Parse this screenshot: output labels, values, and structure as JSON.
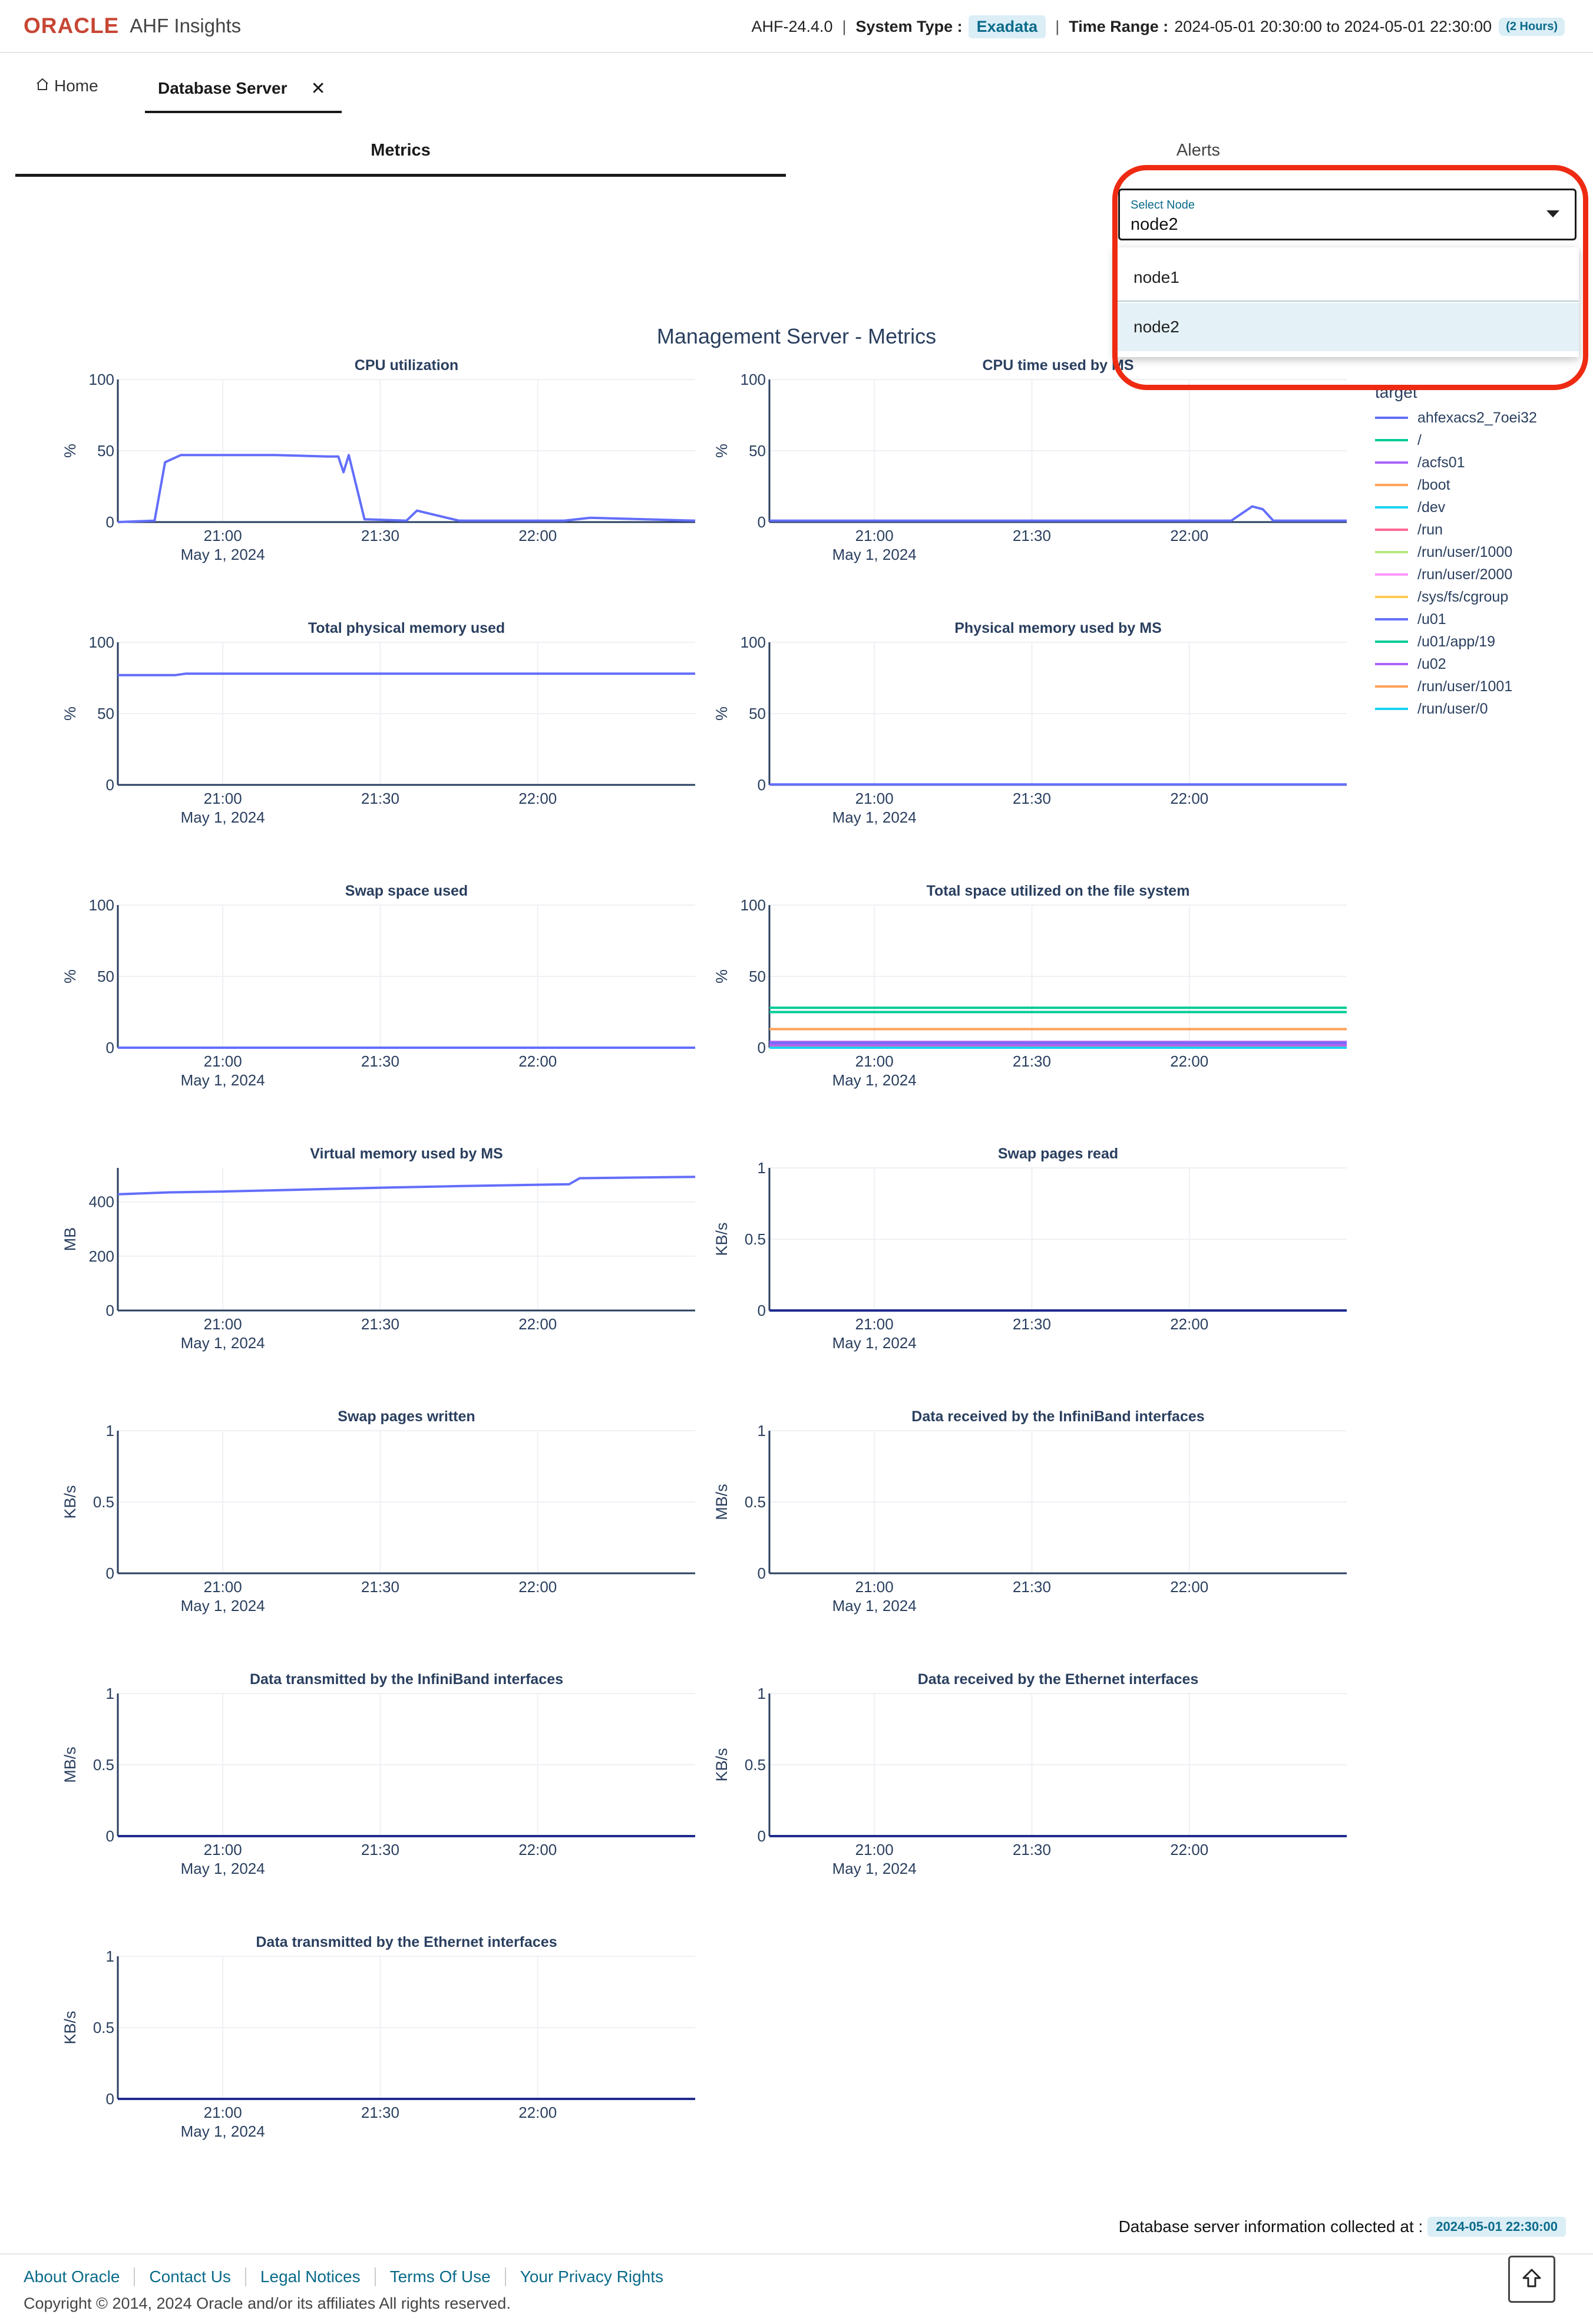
{
  "header": {
    "brand": "ORACLE",
    "app_name": "AHF Insights",
    "version": "AHF-24.4.0",
    "system_type_label": "System Type :",
    "system_type": "Exadata",
    "time_range_label": "Time Range :",
    "time_range": "2024-05-01 20:30:00 to 2024-05-01 22:30:00",
    "time_range_badge": "(2 Hours)"
  },
  "tabs": {
    "home_label": "Home",
    "db_server_label": "Database Server"
  },
  "subtabs": {
    "metrics": "Metrics",
    "alerts": "Alerts"
  },
  "node_select": {
    "label": "Select Node",
    "value": "node2",
    "options": [
      "node1",
      "node2"
    ]
  },
  "main_title": "Management Server - Metrics",
  "time_axis": {
    "ticks": [
      "21:00",
      "21:30",
      "22:00"
    ],
    "date_label": "May 1, 2024"
  },
  "legend": {
    "title": "target",
    "items": [
      {
        "name": "ahfexacs2_7oei32",
        "color": "#636efa"
      },
      {
        "name": "/",
        "color": "#00cc96"
      },
      {
        "name": "/acfs01",
        "color": "#ab63fa"
      },
      {
        "name": "/boot",
        "color": "#ffa15a"
      },
      {
        "name": "/dev",
        "color": "#19d3f3"
      },
      {
        "name": "/run",
        "color": "#ff6692"
      },
      {
        "name": "/run/user/1000",
        "color": "#b6e880"
      },
      {
        "name": "/run/user/2000",
        "color": "#ff97ff"
      },
      {
        "name": "/sys/fs/cgroup",
        "color": "#fecb52"
      },
      {
        "name": "/u01",
        "color": "#636efa"
      },
      {
        "name": "/u01/app/19",
        "color": "#00cc96"
      },
      {
        "name": "/u02",
        "color": "#ab63fa"
      },
      {
        "name": "/run/user/1001",
        "color": "#ffa15a"
      },
      {
        "name": "/run/user/0",
        "color": "#19d3f3"
      }
    ]
  },
  "chart_data": [
    {
      "type": "line",
      "title": "CPU utilization",
      "ylabel": "%",
      "ylim": [
        0,
        100
      ],
      "yticks": [
        "0",
        "50",
        "100"
      ],
      "x": [
        "20:40",
        "20:47",
        "20:49",
        "20:52",
        "21:00",
        "21:10",
        "21:20",
        "21:22",
        "21:23",
        "21:24",
        "21:27",
        "21:35",
        "21:37",
        "21:45",
        "21:55",
        "22:05",
        "22:10",
        "22:30"
      ],
      "series": [
        {
          "name": "ahfexacs2_7oei32",
          "color": "#636efa",
          "values": [
            0,
            1,
            42,
            47,
            47,
            47,
            46,
            46,
            35,
            47,
            2,
            1,
            8,
            1,
            1,
            1,
            3,
            1
          ]
        }
      ]
    },
    {
      "type": "line",
      "title": "CPU time used by MS",
      "ylabel": "%",
      "ylim": [
        0,
        100
      ],
      "yticks": [
        "0",
        "50",
        "100"
      ],
      "x": [
        "20:40",
        "21:00",
        "21:30",
        "22:00",
        "22:08",
        "22:12",
        "22:14",
        "22:16",
        "22:30"
      ],
      "series": [
        {
          "name": "ahfexacs2_7oei32",
          "color": "#636efa",
          "values": [
            1,
            1,
            1,
            1,
            1,
            11,
            9,
            1,
            1
          ]
        }
      ]
    },
    {
      "type": "line",
      "title": "Total physical memory used",
      "ylabel": "%",
      "ylim": [
        0,
        100
      ],
      "yticks": [
        "0",
        "50",
        "100"
      ],
      "x": [
        "20:40",
        "20:51",
        "20:53",
        "22:30"
      ],
      "series": [
        {
          "name": "ahfexacs2_7oei32",
          "color": "#636efa",
          "values": [
            77,
            77,
            78,
            78
          ]
        }
      ]
    },
    {
      "type": "line",
      "title": "Physical memory used by MS",
      "ylabel": "%",
      "ylim": [
        0,
        100
      ],
      "yticks": [
        "0",
        "50",
        "100"
      ],
      "x": [
        "20:40",
        "22:30"
      ],
      "series": [
        {
          "name": "ahfexacs2_7oei32",
          "color": "#636efa",
          "values": [
            0.3,
            0.3
          ]
        }
      ]
    },
    {
      "type": "line",
      "title": "Swap space used",
      "ylabel": "%",
      "ylim": [
        0,
        100
      ],
      "yticks": [
        "0",
        "50",
        "100"
      ],
      "x": [
        "20:40",
        "22:30"
      ],
      "series": [
        {
          "name": "ahfexacs2_7oei32",
          "color": "#636efa",
          "values": [
            0,
            0
          ]
        }
      ]
    },
    {
      "type": "line",
      "title": "Total space utilized on the file system",
      "ylabel": "%",
      "ylim": [
        0,
        100
      ],
      "yticks": [
        "0",
        "50",
        "100"
      ],
      "x": [
        "20:40",
        "22:30"
      ],
      "series": [
        {
          "name": "/",
          "color": "#00cc96",
          "values": [
            28,
            28
          ]
        },
        {
          "name": "/acfs01",
          "color": "#ab63fa",
          "values": [
            4,
            4
          ]
        },
        {
          "name": "/boot",
          "color": "#ffa15a",
          "values": [
            13,
            13
          ]
        },
        {
          "name": "/dev",
          "color": "#19d3f3",
          "values": [
            0,
            0
          ]
        },
        {
          "name": "/run",
          "color": "#ff6692",
          "values": [
            1,
            1
          ]
        },
        {
          "name": "/run/user/1000",
          "color": "#b6e880",
          "values": [
            0,
            0
          ]
        },
        {
          "name": "/run/user/2000",
          "color": "#ff97ff",
          "values": [
            0,
            0
          ]
        },
        {
          "name": "/sys/fs/cgroup",
          "color": "#fecb52",
          "values": [
            0,
            0
          ]
        },
        {
          "name": "/u01",
          "color": "#636efa",
          "values": [
            3,
            3
          ]
        },
        {
          "name": "/u01/app/19",
          "color": "#00cc96",
          "values": [
            25,
            25
          ]
        },
        {
          "name": "/u02",
          "color": "#ab63fa",
          "values": [
            2,
            2
          ]
        },
        {
          "name": "/run/user/1001",
          "color": "#ffa15a",
          "values": [
            0,
            0
          ]
        },
        {
          "name": "/run/user/0",
          "color": "#19d3f3",
          "values": [
            0,
            0
          ]
        }
      ]
    },
    {
      "type": "line",
      "title": "Virtual memory used by MS",
      "ylabel": "MB",
      "ylim": [
        0,
        525
      ],
      "yticks": [
        "0",
        "200",
        "400"
      ],
      "x": [
        "20:40",
        "20:50",
        "21:00",
        "21:15",
        "21:30",
        "21:45",
        "22:00",
        "22:06",
        "22:08",
        "22:30"
      ],
      "series": [
        {
          "name": "ahfexacs2_7oei32",
          "color": "#636efa",
          "values": [
            428,
            435,
            438,
            445,
            452,
            458,
            463,
            465,
            487,
            492
          ]
        }
      ]
    },
    {
      "type": "line",
      "title": "Swap pages read",
      "ylabel": "KB/s",
      "ylim": [
        0,
        1
      ],
      "yticks": [
        "0",
        "0.5",
        "1"
      ],
      "x": [
        "20:40",
        "22:30"
      ],
      "series": [
        {
          "name": "ahfexacs2_7oei32",
          "color": "#1f2b8f",
          "values": [
            0,
            0
          ]
        }
      ]
    },
    {
      "type": "line",
      "title": "Swap pages written",
      "ylabel": "KB/s",
      "ylim": [
        0,
        1
      ],
      "yticks": [
        "0",
        "0.5",
        "1"
      ],
      "x": [
        "20:40",
        "22:30"
      ],
      "series": []
    },
    {
      "type": "line",
      "title": "Data received by the InfiniBand interfaces",
      "ylabel": "MB/s",
      "ylim": [
        0,
        1
      ],
      "yticks": [
        "0",
        "0.5",
        "1"
      ],
      "x": [
        "20:40",
        "22:30"
      ],
      "series": []
    },
    {
      "type": "line",
      "title": "Data transmitted by the InfiniBand interfaces",
      "ylabel": "MB/s",
      "ylim": [
        0,
        1
      ],
      "yticks": [
        "0",
        "0.5",
        "1"
      ],
      "x": [
        "20:40",
        "22:30"
      ],
      "series": [
        {
          "name": "ahfexacs2_7oei32",
          "color": "#1f2b8f",
          "values": [
            0,
            0
          ]
        }
      ]
    },
    {
      "type": "line",
      "title": "Data received by the Ethernet interfaces",
      "ylabel": "KB/s",
      "ylim": [
        0,
        1
      ],
      "yticks": [
        "0",
        "0.5",
        "1"
      ],
      "x": [
        "20:40",
        "22:30"
      ],
      "series": [
        {
          "name": "ahfexacs2_7oei32",
          "color": "#1f2b8f",
          "values": [
            0,
            0
          ]
        }
      ]
    },
    {
      "type": "line",
      "title": "Data transmitted by the Ethernet interfaces",
      "ylabel": "KB/s",
      "ylim": [
        0,
        1
      ],
      "yticks": [
        "0",
        "0.5",
        "1"
      ],
      "x": [
        "20:40",
        "22:30"
      ],
      "series": [
        {
          "name": "ahfexacs2_7oei32",
          "color": "#1f2b8f",
          "values": [
            0,
            0
          ]
        }
      ]
    }
  ],
  "footer": {
    "collected_label": "Database server information collected at :",
    "collected_value": "2024-05-01 22:30:00",
    "links": [
      "About Oracle",
      "Contact Us",
      "Legal Notices",
      "Terms Of Use",
      "Your Privacy Rights"
    ],
    "copyright": "Copyright © 2014, 2024 Oracle and/or its affiliates All rights reserved."
  }
}
